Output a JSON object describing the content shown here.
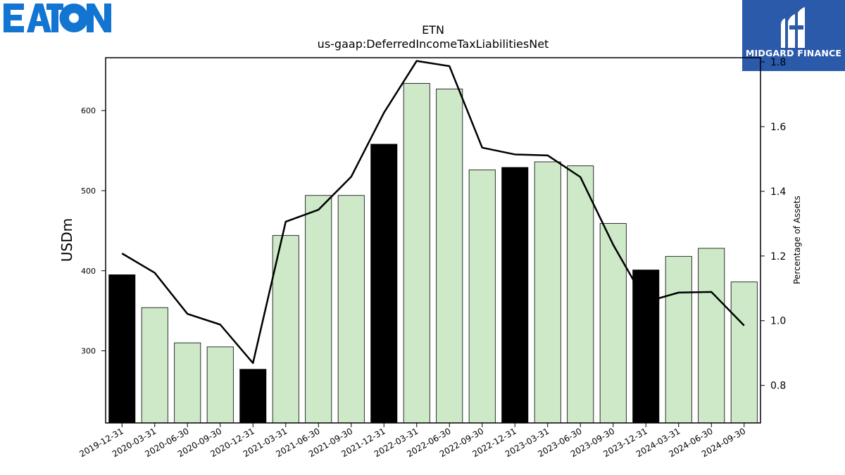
{
  "logos": {
    "left": {
      "text": "EATON",
      "color": "#1175d1"
    },
    "right": {
      "text": "MIDGARD FINANCE",
      "background": "#2b5aab",
      "text_color": "#ffffff"
    }
  },
  "chart_data": {
    "type": "bar",
    "title": "ETN",
    "subtitle": "us-gaap:DeferredIncomeTaxLiabilitiesNet",
    "ylabel": "USDm",
    "y2label": "Percentage of Assets",
    "ylim": [
      210,
      666
    ],
    "y2lim": [
      0.684,
      1.813
    ],
    "yticks": [
      300,
      400,
      500,
      600
    ],
    "y2ticks": [
      0.8,
      1.0,
      1.2,
      1.4,
      1.6,
      1.8
    ],
    "categories": [
      "2019-12-31",
      "2020-03-31",
      "2020-06-30",
      "2020-09-30",
      "2020-12-31",
      "2021-03-31",
      "2021-06-30",
      "2021-09-30",
      "2021-12-31",
      "2022-03-31",
      "2022-06-30",
      "2022-09-30",
      "2022-12-31",
      "2023-03-31",
      "2023-06-30",
      "2023-09-30",
      "2023-12-31",
      "2024-03-31",
      "2024-06-30",
      "2024-09-30"
    ],
    "series": [
      {
        "type": "bar",
        "axis": "left",
        "values": [
          395,
          354,
          310,
          305,
          277,
          444,
          494,
          494,
          558,
          634,
          627,
          526,
          529,
          536,
          531,
          459,
          401,
          418,
          428,
          386
        ],
        "highlight": [
          true,
          false,
          false,
          false,
          true,
          false,
          false,
          false,
          true,
          false,
          false,
          false,
          true,
          false,
          false,
          false,
          true,
          false,
          false,
          false
        ]
      },
      {
        "type": "line",
        "axis": "right",
        "values": [
          1.208,
          1.148,
          1.021,
          0.988,
          0.869,
          1.306,
          1.343,
          1.445,
          1.643,
          1.803,
          1.787,
          1.535,
          1.514,
          1.511,
          1.444,
          1.235,
          1.058,
          1.087,
          1.089,
          0.985
        ]
      }
    ],
    "colors": {
      "bar_fill": "#cde9c8",
      "bar_highlight": "#000000",
      "bar_edge": "#000000",
      "line": "#000000"
    },
    "grid": false
  }
}
